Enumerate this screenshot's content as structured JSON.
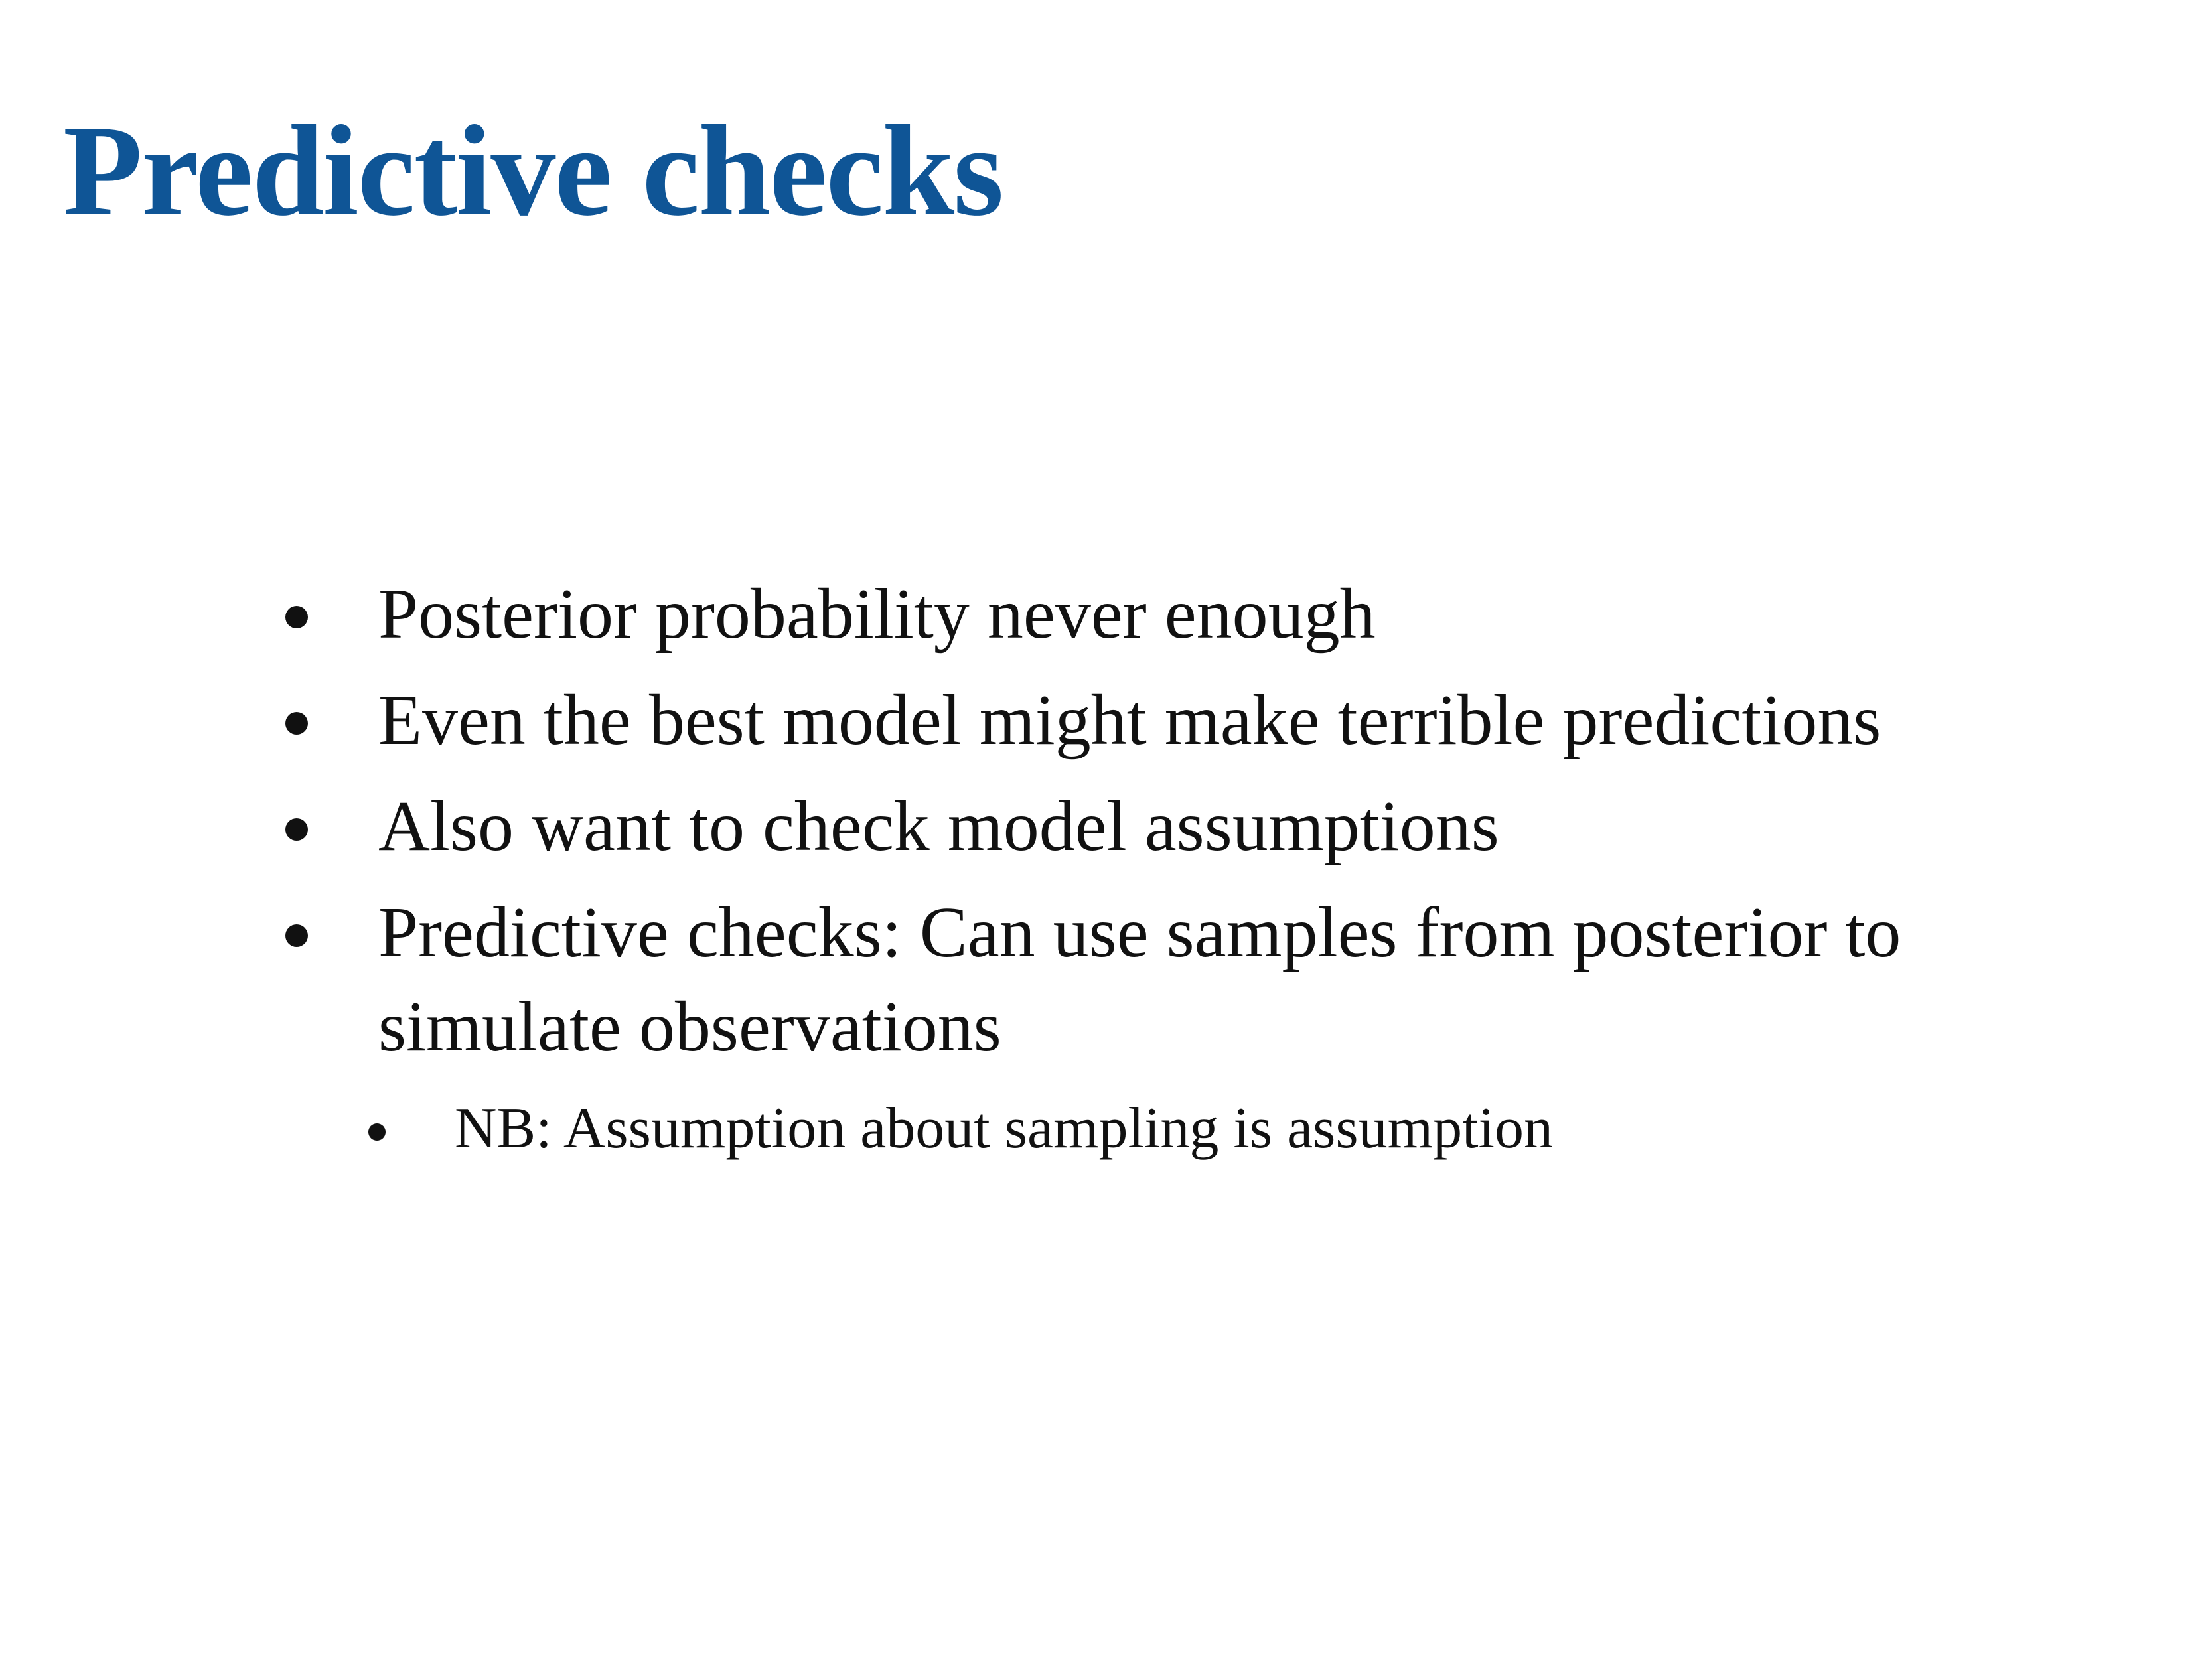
{
  "colors": {
    "title": "#0f5596",
    "text": "#111111",
    "background": "#ffffff"
  },
  "slide": {
    "title": "Predictive checks",
    "bullets": [
      {
        "text": "Posterior probability never enough"
      },
      {
        "text": "Even the best model might make terrible predictions"
      },
      {
        "text": "Also want to check model assumptions"
      },
      {
        "text": "Predictive checks: Can use samples from posterior to simulate observations",
        "sub_bullets": [
          {
            "text": "NB: Assumption about sampling is assumption"
          }
        ]
      }
    ]
  }
}
